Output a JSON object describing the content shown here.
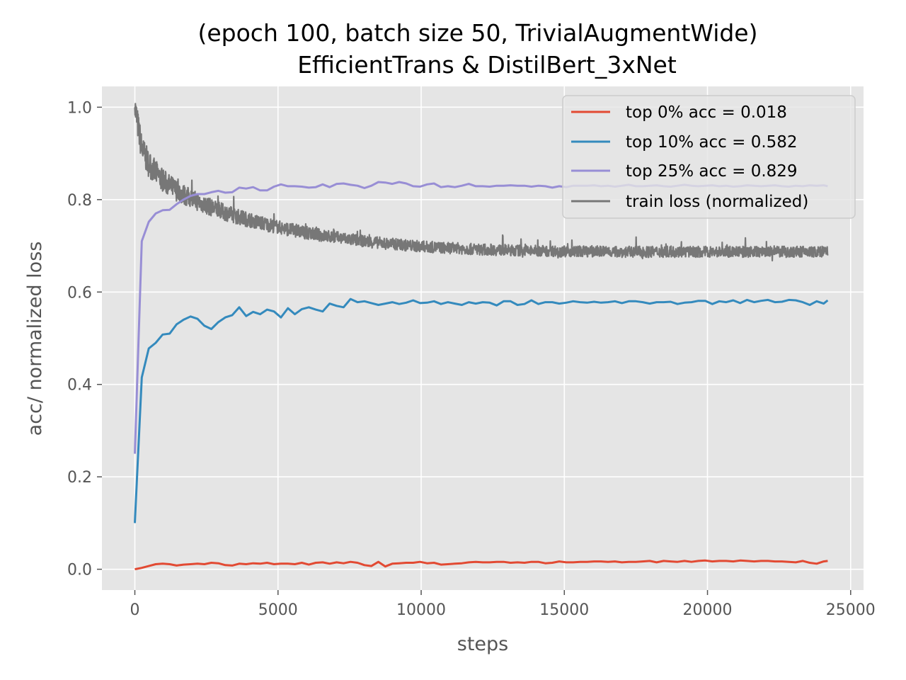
{
  "chart_data": {
    "type": "line",
    "title": "(epoch 100, batch size 50, TrivialAugmentWide)",
    "subtitle": "EfficientTrans & DistilBert_3xNet",
    "xlabel": "steps",
    "ylabel": "acc/ normalized loss",
    "xlim": [
      -1150,
      25450
    ],
    "ylim": [
      -0.045,
      1.045
    ],
    "xticks": [
      0,
      5000,
      10000,
      15000,
      20000,
      25000
    ],
    "xtick_labels": [
      "0",
      "5000",
      "10000",
      "15000",
      "20000",
      "25000"
    ],
    "yticks": [
      0.0,
      0.2,
      0.4,
      0.6,
      0.8,
      1.0
    ],
    "ytick_labels": [
      "0.0",
      "0.2",
      "0.4",
      "0.6",
      "0.8",
      "1.0"
    ],
    "grid": true,
    "legend_position": "top-right",
    "background": "#e5e5e5",
    "x": [
      0,
      243,
      486,
      729,
      972,
      1215,
      1458,
      1701,
      1944,
      2187,
      2430,
      2673,
      2916,
      3159,
      3402,
      3645,
      3888,
      4131,
      4374,
      4617,
      4860,
      5103,
      5346,
      5589,
      5832,
      6075,
      6318,
      6561,
      6804,
      7047,
      7290,
      7533,
      7776,
      8019,
      8262,
      8505,
      8748,
      8991,
      9234,
      9477,
      9720,
      9963,
      10206,
      10449,
      10692,
      10935,
      11178,
      11421,
      11664,
      11907,
      12150,
      12393,
      12636,
      12879,
      13122,
      13365,
      13608,
      13851,
      14094,
      14337,
      14580,
      14823,
      15066,
      15309,
      15552,
      15795,
      16038,
      16281,
      16524,
      16767,
      17010,
      17253,
      17496,
      17739,
      17982,
      18225,
      18468,
      18711,
      18954,
      19197,
      19440,
      19683,
      19926,
      20169,
      20412,
      20655,
      20898,
      21141,
      21384,
      21627,
      21870,
      22113,
      22356,
      22599,
      22842,
      23085,
      23328,
      23571,
      23814,
      24057,
      24200
    ],
    "series": [
      {
        "name": "top 0% acc = 0.018",
        "color": "#e24a33",
        "values": [
          0.0,
          0.003,
          0.007,
          0.011,
          0.012,
          0.011,
          0.008,
          0.01,
          0.011,
          0.012,
          0.011,
          0.014,
          0.013,
          0.009,
          0.008,
          0.012,
          0.011,
          0.013,
          0.012,
          0.014,
          0.011,
          0.012,
          0.012,
          0.011,
          0.014,
          0.01,
          0.014,
          0.015,
          0.012,
          0.015,
          0.013,
          0.016,
          0.014,
          0.009,
          0.007,
          0.016,
          0.006,
          0.012,
          0.013,
          0.014,
          0.014,
          0.016,
          0.013,
          0.014,
          0.01,
          0.011,
          0.012,
          0.013,
          0.015,
          0.016,
          0.015,
          0.015,
          0.016,
          0.016,
          0.014,
          0.015,
          0.014,
          0.016,
          0.016,
          0.013,
          0.014,
          0.017,
          0.015,
          0.015,
          0.016,
          0.016,
          0.017,
          0.017,
          0.016,
          0.017,
          0.015,
          0.016,
          0.016,
          0.017,
          0.018,
          0.015,
          0.018,
          0.017,
          0.016,
          0.018,
          0.016,
          0.018,
          0.019,
          0.017,
          0.018,
          0.018,
          0.017,
          0.019,
          0.018,
          0.017,
          0.018,
          0.018,
          0.017,
          0.017,
          0.016,
          0.015,
          0.018,
          0.014,
          0.012,
          0.017,
          0.018
        ]
      },
      {
        "name": "top 10% acc = 0.582",
        "color": "#348abd",
        "values": [
          0.1,
          0.415,
          0.478,
          0.49,
          0.508,
          0.51,
          0.53,
          0.54,
          0.547,
          0.542,
          0.527,
          0.52,
          0.535,
          0.545,
          0.55,
          0.567,
          0.548,
          0.557,
          0.552,
          0.562,
          0.558,
          0.545,
          0.565,
          0.552,
          0.563,
          0.567,
          0.562,
          0.558,
          0.575,
          0.57,
          0.567,
          0.585,
          0.578,
          0.58,
          0.576,
          0.572,
          0.575,
          0.578,
          0.574,
          0.577,
          0.582,
          0.576,
          0.577,
          0.58,
          0.574,
          0.578,
          0.575,
          0.572,
          0.578,
          0.575,
          0.578,
          0.577,
          0.571,
          0.58,
          0.58,
          0.572,
          0.574,
          0.582,
          0.574,
          0.578,
          0.578,
          0.575,
          0.577,
          0.58,
          0.578,
          0.577,
          0.579,
          0.577,
          0.578,
          0.58,
          0.576,
          0.58,
          0.58,
          0.578,
          0.575,
          0.578,
          0.578,
          0.579,
          0.574,
          0.577,
          0.578,
          0.581,
          0.581,
          0.574,
          0.58,
          0.578,
          0.582,
          0.576,
          0.583,
          0.578,
          0.581,
          0.583,
          0.578,
          0.579,
          0.583,
          0.582,
          0.578,
          0.572,
          0.58,
          0.575,
          0.582
        ]
      },
      {
        "name": "top 25% acc = 0.829",
        "color": "#988ed5",
        "values": [
          0.25,
          0.71,
          0.752,
          0.77,
          0.777,
          0.778,
          0.79,
          0.8,
          0.808,
          0.812,
          0.812,
          0.816,
          0.819,
          0.815,
          0.816,
          0.826,
          0.824,
          0.827,
          0.82,
          0.82,
          0.828,
          0.833,
          0.829,
          0.829,
          0.828,
          0.826,
          0.827,
          0.833,
          0.827,
          0.834,
          0.835,
          0.832,
          0.83,
          0.825,
          0.83,
          0.838,
          0.837,
          0.834,
          0.838,
          0.835,
          0.829,
          0.828,
          0.833,
          0.835,
          0.827,
          0.829,
          0.827,
          0.83,
          0.834,
          0.829,
          0.829,
          0.828,
          0.83,
          0.83,
          0.831,
          0.83,
          0.83,
          0.828,
          0.83,
          0.829,
          0.826,
          0.829,
          0.827,
          0.83,
          0.83,
          0.83,
          0.831,
          0.829,
          0.83,
          0.828,
          0.83,
          0.832,
          0.829,
          0.829,
          0.83,
          0.831,
          0.829,
          0.828,
          0.83,
          0.832,
          0.83,
          0.829,
          0.83,
          0.831,
          0.829,
          0.83,
          0.828,
          0.829,
          0.831,
          0.83,
          0.829,
          0.83,
          0.831,
          0.829,
          0.828,
          0.83,
          0.829,
          0.831,
          0.83,
          0.831,
          0.829
        ]
      },
      {
        "name": "train loss (normalized)",
        "color": "#777777",
        "values": [
          1.0,
          0.91,
          0.877,
          0.858,
          0.842,
          0.83,
          0.82,
          0.811,
          0.803,
          0.796,
          0.789,
          0.783,
          0.777,
          0.772,
          0.767,
          0.762,
          0.758,
          0.754,
          0.75,
          0.746,
          0.743,
          0.739,
          0.736,
          0.733,
          0.73,
          0.727,
          0.725,
          0.722,
          0.72,
          0.718,
          0.716,
          0.714,
          0.712,
          0.71,
          0.708,
          0.707,
          0.705,
          0.704,
          0.703,
          0.701,
          0.7,
          0.699,
          0.698,
          0.697,
          0.696,
          0.695,
          0.695,
          0.694,
          0.693,
          0.693,
          0.692,
          0.692,
          0.691,
          0.691,
          0.69,
          0.69,
          0.69,
          0.689,
          0.689,
          0.689,
          0.689,
          0.688,
          0.688,
          0.688,
          0.688,
          0.688,
          0.688,
          0.688,
          0.688,
          0.687,
          0.687,
          0.687,
          0.687,
          0.687,
          0.687,
          0.687,
          0.687,
          0.687,
          0.687,
          0.687,
          0.687,
          0.687,
          0.687,
          0.687,
          0.687,
          0.687,
          0.687,
          0.687,
          0.687,
          0.687,
          0.687,
          0.687,
          0.687,
          0.687,
          0.687,
          0.687,
          0.687,
          0.687,
          0.687,
          0.687,
          0.687
        ],
        "noise": true
      }
    ]
  }
}
